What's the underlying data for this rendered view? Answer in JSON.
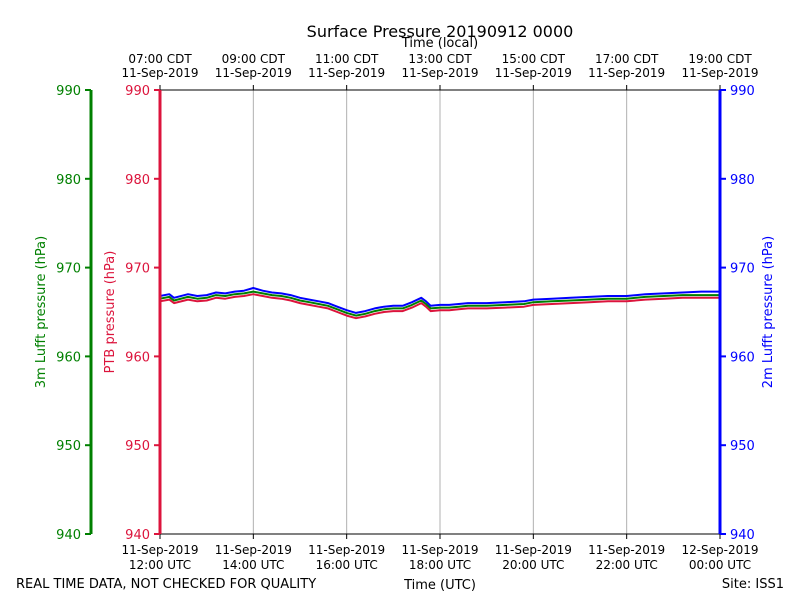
{
  "chart_data": {
    "type": "line",
    "title": "Surface Pressure 20190912 0000",
    "top_axis_label": "Time (local)",
    "xlabel": "Time (UTC)",
    "footer_left": "REAL TIME DATA, NOT CHECKED FOR QUALITY",
    "footer_right": "Site: ISS1",
    "x_range_hours_utc": [
      12,
      24
    ],
    "ylim": [
      940,
      990
    ],
    "grid": "vertical",
    "bottom_ticks": [
      {
        "hour": 12,
        "date": "11-Sep-2019",
        "time": "12:00 UTC"
      },
      {
        "hour": 14,
        "date": "11-Sep-2019",
        "time": "14:00 UTC"
      },
      {
        "hour": 16,
        "date": "11-Sep-2019",
        "time": "16:00 UTC"
      },
      {
        "hour": 18,
        "date": "11-Sep-2019",
        "time": "18:00 UTC"
      },
      {
        "hour": 20,
        "date": "11-Sep-2019",
        "time": "20:00 UTC"
      },
      {
        "hour": 22,
        "date": "11-Sep-2019",
        "time": "22:00 UTC"
      },
      {
        "hour": 24,
        "date": "12-Sep-2019",
        "time": "00:00 UTC"
      }
    ],
    "top_ticks": [
      {
        "hour": 12,
        "time": "07:00 CDT",
        "date": "11-Sep-2019"
      },
      {
        "hour": 14,
        "time": "09:00 CDT",
        "date": "11-Sep-2019"
      },
      {
        "hour": 16,
        "time": "11:00 CDT",
        "date": "11-Sep-2019"
      },
      {
        "hour": 18,
        "time": "13:00 CDT",
        "date": "11-Sep-2019"
      },
      {
        "hour": 20,
        "time": "15:00 CDT",
        "date": "11-Sep-2019"
      },
      {
        "hour": 22,
        "time": "17:00 CDT",
        "date": "11-Sep-2019"
      },
      {
        "hour": 24,
        "time": "19:00 CDT",
        "date": "11-Sep-2019"
      }
    ],
    "y_ticks": [
      940,
      950,
      960,
      970,
      980,
      990
    ],
    "axes": [
      {
        "label": "3m Lufft pressure (hPa)",
        "color": "#008000"
      },
      {
        "label": "PTB pressure (hPa)",
        "color": "#dc143c"
      },
      {
        "label": "2m Lufft pressure (hPa)",
        "color": "#0000ff"
      }
    ],
    "series": [
      {
        "color": "#dc143c",
        "x": [
          12.0,
          12.2,
          12.3,
          12.6,
          12.8,
          13.0,
          13.2,
          13.4,
          13.6,
          13.8,
          14.0,
          14.2,
          14.4,
          14.6,
          14.8,
          15.0,
          15.2,
          15.4,
          15.6,
          15.8,
          16.0,
          16.2,
          16.4,
          16.6,
          16.8,
          17.0,
          17.2,
          17.4,
          17.6,
          17.7,
          17.8,
          18.0,
          18.2,
          18.4,
          18.6,
          18.8,
          19.0,
          19.4,
          19.8,
          20.0,
          20.4,
          20.8,
          21.2,
          21.6,
          22.0,
          22.4,
          22.8,
          23.2,
          23.6,
          24.0
        ],
        "values": [
          966.2,
          966.4,
          966.0,
          966.4,
          966.2,
          966.3,
          966.6,
          966.5,
          966.7,
          966.8,
          967.0,
          966.8,
          966.6,
          966.5,
          966.3,
          966.0,
          965.8,
          965.6,
          965.4,
          965.0,
          964.6,
          964.3,
          964.5,
          964.8,
          965.0,
          965.1,
          965.1,
          965.5,
          966.0,
          965.6,
          965.1,
          965.2,
          965.2,
          965.3,
          965.4,
          965.4,
          965.4,
          965.5,
          965.6,
          965.8,
          965.9,
          966.0,
          966.1,
          966.2,
          966.2,
          966.4,
          966.5,
          966.6,
          966.6,
          966.6
        ]
      },
      {
        "color": "#008000",
        "x": [
          12.0,
          12.2,
          12.3,
          12.6,
          12.8,
          13.0,
          13.2,
          13.4,
          13.6,
          13.8,
          14.0,
          14.2,
          14.4,
          14.6,
          14.8,
          15.0,
          15.2,
          15.4,
          15.6,
          15.8,
          16.0,
          16.2,
          16.4,
          16.6,
          16.8,
          17.0,
          17.2,
          17.4,
          17.6,
          17.7,
          17.8,
          18.0,
          18.2,
          18.4,
          18.6,
          18.8,
          19.0,
          19.4,
          19.8,
          20.0,
          20.4,
          20.8,
          21.2,
          21.6,
          22.0,
          22.4,
          22.8,
          23.2,
          23.6,
          24.0
        ],
        "values": [
          966.5,
          966.7,
          966.3,
          966.7,
          966.5,
          966.6,
          966.9,
          966.8,
          967.0,
          967.1,
          967.3,
          967.1,
          966.9,
          966.8,
          966.6,
          966.3,
          966.1,
          965.9,
          965.7,
          965.3,
          964.9,
          964.6,
          964.8,
          965.1,
          965.3,
          965.4,
          965.4,
          965.8,
          966.3,
          965.9,
          965.4,
          965.5,
          965.5,
          965.6,
          965.7,
          965.7,
          965.7,
          965.8,
          965.9,
          966.1,
          966.2,
          966.3,
          966.4,
          966.5,
          966.5,
          966.7,
          966.8,
          966.9,
          966.9,
          966.9
        ]
      },
      {
        "color": "#0000ff",
        "x": [
          12.0,
          12.2,
          12.3,
          12.6,
          12.8,
          13.0,
          13.2,
          13.4,
          13.6,
          13.8,
          14.0,
          14.2,
          14.4,
          14.6,
          14.8,
          15.0,
          15.2,
          15.4,
          15.6,
          15.8,
          16.0,
          16.2,
          16.4,
          16.6,
          16.8,
          17.0,
          17.2,
          17.4,
          17.6,
          17.7,
          17.8,
          18.0,
          18.2,
          18.4,
          18.6,
          18.8,
          19.0,
          19.4,
          19.8,
          20.0,
          20.4,
          20.8,
          21.2,
          21.6,
          22.0,
          22.4,
          22.8,
          23.2,
          23.6,
          24.0
        ],
        "values": [
          966.8,
          967.0,
          966.6,
          967.0,
          966.8,
          966.9,
          967.2,
          967.1,
          967.3,
          967.4,
          967.7,
          967.4,
          967.2,
          967.1,
          966.9,
          966.6,
          966.4,
          966.2,
          966.0,
          965.6,
          965.2,
          964.9,
          965.1,
          965.4,
          965.6,
          965.7,
          965.7,
          966.1,
          966.6,
          966.2,
          965.7,
          965.8,
          965.8,
          965.9,
          966.0,
          966.0,
          966.0,
          966.1,
          966.2,
          966.4,
          966.5,
          966.6,
          966.7,
          966.8,
          966.8,
          967.0,
          967.1,
          967.2,
          967.3,
          967.3
        ]
      }
    ]
  }
}
